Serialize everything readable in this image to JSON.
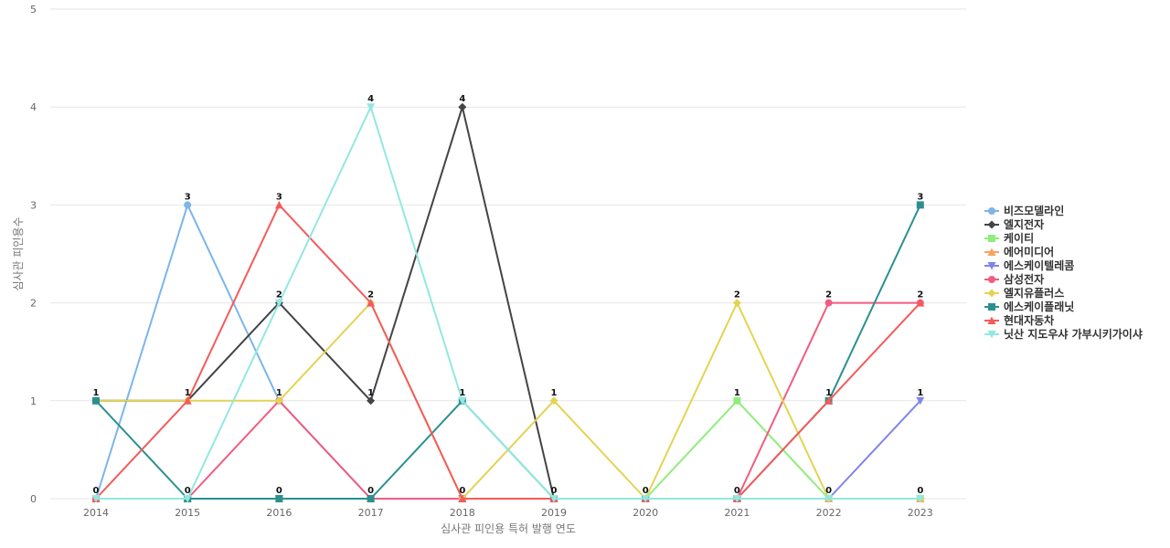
{
  "chart_data": {
    "type": "line",
    "title": "",
    "xlabel": "심사관 피인용 특허 발행 연도",
    "ylabel": "심사관 피인용수",
    "x": [
      "2014",
      "2015",
      "2016",
      "2017",
      "2018",
      "2019",
      "2020",
      "2021",
      "2022",
      "2023"
    ],
    "yticks": [
      "0",
      "1",
      "2",
      "3",
      "4",
      "5"
    ],
    "ylim": [
      0,
      5
    ],
    "grid": true,
    "legend_position": "right",
    "series": [
      {
        "name": "비즈모델라인",
        "color": "#7cb5ec",
        "marker": "circle",
        "values": [
          0,
          3,
          1,
          0,
          0,
          0,
          0,
          0,
          0,
          0
        ]
      },
      {
        "name": "엘지전자",
        "color": "#434348",
        "marker": "diamond",
        "values": [
          1,
          1,
          2,
          1,
          4,
          0,
          0,
          0,
          0,
          0
        ]
      },
      {
        "name": "케이티",
        "color": "#90ed7d",
        "marker": "square",
        "values": [
          0,
          0,
          0,
          0,
          0,
          0,
          0,
          1,
          0,
          0
        ]
      },
      {
        "name": "에어미디어",
        "color": "#f7a35c",
        "marker": "triangle",
        "values": [
          0,
          0,
          0,
          0,
          0,
          0,
          0,
          0,
          0,
          0
        ]
      },
      {
        "name": "에스케이텔레콤",
        "color": "#8085e9",
        "marker": "triangle-down",
        "values": [
          0,
          0,
          0,
          0,
          0,
          0,
          0,
          0,
          0,
          1
        ]
      },
      {
        "name": "삼성전자",
        "color": "#f15c80",
        "marker": "circle",
        "values": [
          0,
          0,
          1,
          0,
          0,
          0,
          0,
          0,
          2,
          2
        ]
      },
      {
        "name": "엘지유플러스",
        "color": "#e4d354",
        "marker": "diamond",
        "values": [
          1,
          1,
          1,
          2,
          0,
          1,
          0,
          2,
          0,
          0
        ]
      },
      {
        "name": "에스케이플래닛",
        "color": "#2b908f",
        "marker": "square",
        "values": [
          1,
          0,
          0,
          0,
          1,
          0,
          0,
          0,
          1,
          3
        ]
      },
      {
        "name": "현대자동차",
        "color": "#f45b5b",
        "marker": "triangle",
        "values": [
          0,
          1,
          3,
          2,
          0,
          0,
          0,
          0,
          1,
          2
        ]
      },
      {
        "name": "닛산 지도우샤 가부시키가이샤",
        "color": "#91e8e1",
        "marker": "triangle-down",
        "values": [
          0,
          0,
          2,
          4,
          1,
          0,
          0,
          0,
          0,
          0
        ]
      }
    ],
    "data_labels": [
      {
        "x": "2014",
        "y": 1,
        "text": "1"
      },
      {
        "x": "2014",
        "y": 0,
        "text": "0"
      },
      {
        "x": "2015",
        "y": 3,
        "text": "3"
      },
      {
        "x": "2015",
        "y": 1,
        "text": "1"
      },
      {
        "x": "2015",
        "y": 0,
        "text": "0"
      },
      {
        "x": "2016",
        "y": 3,
        "text": "3"
      },
      {
        "x": "2016",
        "y": 2,
        "text": "2"
      },
      {
        "x": "2016",
        "y": 1,
        "text": "1"
      },
      {
        "x": "2016",
        "y": 0,
        "text": "0"
      },
      {
        "x": "2017",
        "y": 4,
        "text": "4"
      },
      {
        "x": "2017",
        "y": 2,
        "text": "2"
      },
      {
        "x": "2017",
        "y": 1,
        "text": "1"
      },
      {
        "x": "2017",
        "y": 0,
        "text": "0"
      },
      {
        "x": "2018",
        "y": 4,
        "text": "4"
      },
      {
        "x": "2018",
        "y": 1,
        "text": "1"
      },
      {
        "x": "2018",
        "y": 0,
        "text": "0"
      },
      {
        "x": "2019",
        "y": 1,
        "text": "1"
      },
      {
        "x": "2019",
        "y": 0,
        "text": "0"
      },
      {
        "x": "2020",
        "y": 0,
        "text": "0"
      },
      {
        "x": "2021",
        "y": 2,
        "text": "2"
      },
      {
        "x": "2021",
        "y": 1,
        "text": "1"
      },
      {
        "x": "2021",
        "y": 0,
        "text": "0"
      },
      {
        "x": "2022",
        "y": 2,
        "text": "2"
      },
      {
        "x": "2022",
        "y": 1,
        "text": "1"
      },
      {
        "x": "2022",
        "y": 0,
        "text": "0"
      },
      {
        "x": "2023",
        "y": 3,
        "text": "3"
      },
      {
        "x": "2023",
        "y": 2,
        "text": "2"
      },
      {
        "x": "2023",
        "y": 1,
        "text": "1"
      },
      {
        "x": "2023",
        "y": 0,
        "text": "0"
      }
    ]
  }
}
